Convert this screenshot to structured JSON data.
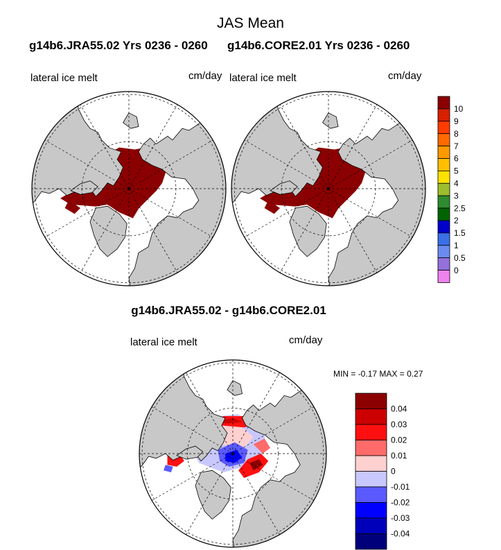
{
  "figure": {
    "title": "JAS Mean",
    "panels": [
      {
        "run_label": "g14b6.JRA55.02  Yrs 0236 - 0260",
        "variable": "lateral ice melt",
        "units": "cm/day"
      },
      {
        "run_label": "g14b6.CORE2.01  Yrs 0236 - 0260",
        "variable": "lateral ice melt",
        "units": "cm/day"
      }
    ],
    "difference": {
      "title": "g14b6.JRA55.02 - g14b6.CORE2.01",
      "variable": "lateral ice melt",
      "units": "cm/day",
      "stats": {
        "min_label": "MIN =",
        "min_value": "-0.17",
        "max_label": "MAX =",
        "max_value": "0.27"
      }
    }
  },
  "chart_data": [
    {
      "type": "heatmap",
      "projection": "north polar stereographic",
      "title": "g14b6.JRA55.02  Yrs 0236 - 0260",
      "field": "lateral ice melt",
      "units": "cm/day",
      "note": "Arctic sea-ice region in the highest contour class (>10)"
    },
    {
      "type": "heatmap",
      "projection": "north polar stereographic",
      "title": "g14b6.CORE2.01  Yrs 0236 - 0260",
      "field": "lateral ice melt",
      "units": "cm/day",
      "note": "Arctic sea-ice region in the highest contour class (>10)"
    },
    {
      "type": "heatmap",
      "projection": "north polar stereographic",
      "title": "g14b6.JRA55.02 - g14b6.CORE2.01",
      "field": "lateral ice melt",
      "units": "cm/day",
      "min": -0.17,
      "max": 0.27
    }
  ],
  "colorbars": {
    "main": {
      "labels": [
        "10",
        "9",
        "8",
        "7",
        "6",
        "5",
        "4",
        "3",
        "2.5",
        "2",
        "1.5",
        "1",
        "0.5",
        "0"
      ],
      "colors": [
        "#8b0000",
        "#d62000",
        "#ff3c00",
        "#ff6a00",
        "#ff9900",
        "#ffbf00",
        "#ffe300",
        "#9cbd2c",
        "#2e8b2e",
        "#006400",
        "#0000cd",
        "#3a6fe8",
        "#6a8cf2",
        "#9370db",
        "#ee82ee"
      ]
    },
    "diff": {
      "labels": [
        "0.04",
        "0.03",
        "0.02",
        "0.01",
        "0",
        "-0.01",
        "-0.02",
        "-0.03",
        "-0.04"
      ],
      "colors": [
        "#8b0000",
        "#cc0000",
        "#ff1010",
        "#ff6a6a",
        "#ffd0d0",
        "#c8c8ff",
        "#5a5aff",
        "#0000ff",
        "#0000bb",
        "#00007a"
      ]
    }
  }
}
